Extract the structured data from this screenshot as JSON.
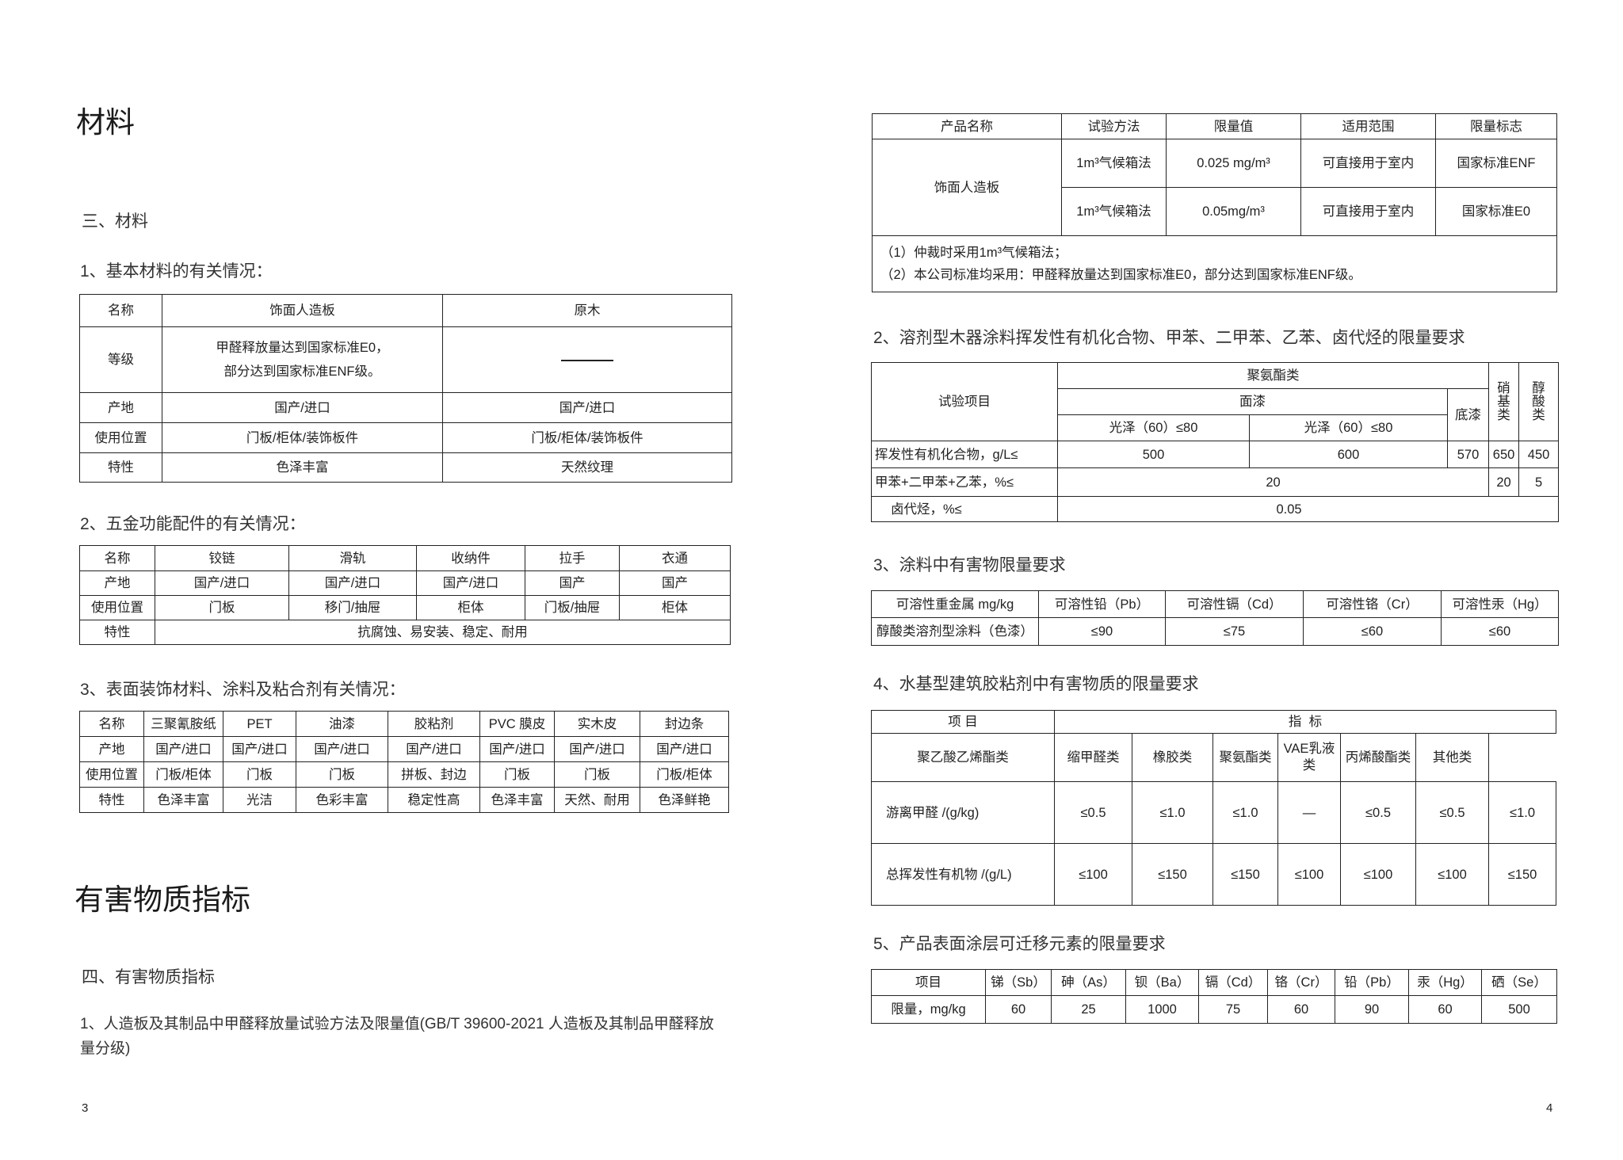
{
  "left": {
    "title": "材料",
    "section": "三、材料",
    "t1": {
      "caption": "1、基本材料的有关情况：",
      "header": [
        "名称",
        "饰面人造板",
        "原木"
      ],
      "grade": {
        "label": "等级",
        "line1": "甲醛释放量达到国家标准E0，",
        "line2": "部分达到国家标准ENF级。",
        "solid_wood": "—"
      },
      "rows": [
        [
          "产地",
          "国产/进口",
          "国产/进口"
        ],
        [
          "使用位置",
          "门板/柜体/装饰板件",
          "门板/柜体/装饰板件"
        ],
        [
          "特性",
          "色泽丰富",
          "天然纹理"
        ]
      ]
    },
    "t2": {
      "caption": "2、五金功能配件的有关情况：",
      "header": [
        "名称",
        "铰链",
        "滑轨",
        "收纳件",
        "拉手",
        "衣通"
      ],
      "rows": [
        [
          "产地",
          "国产/进口",
          "国产/进口",
          "国产/进口",
          "国产",
          "国产"
        ],
        [
          "使用位置",
          "门板",
          "移门/抽屉",
          "柜体",
          "门板/抽屉",
          "柜体"
        ]
      ],
      "feature": [
        "特性",
        "抗腐蚀、易安装、稳定、耐用"
      ]
    },
    "t3": {
      "caption": "3、表面装饰材料、涂料及粘合剂有关情况：",
      "rows": [
        [
          "名称",
          "三聚氰胺纸",
          "PET",
          "油漆",
          "胶粘剂",
          "PVC 膜皮",
          "实木皮",
          "封边条"
        ],
        [
          "产地",
          "国产/进口",
          "国产/进口",
          "国产/进口",
          "国产/进口",
          "国产/进口",
          "国产/进口",
          "国产/进口"
        ],
        [
          "使用位置",
          "门板/柜体",
          "门板",
          "门板",
          "拼板、封边",
          "门板",
          "门板",
          "门板/柜体"
        ],
        [
          "特性",
          "色泽丰富",
          "光洁",
          "色彩丰富",
          "稳定性高",
          "色泽丰富",
          "天然、耐用",
          "色泽鲜艳"
        ]
      ]
    },
    "title2": "有害物质指标",
    "section2": "四、有害物质指标",
    "para1": "1、人造板及其制品中甲醛释放量试验方法及限量值(GB/T 39600-2021  人造板及其制品甲醛释放",
    "para2": "量分级)",
    "page_number": "3"
  },
  "right": {
    "tA": {
      "header": [
        "产品名称",
        "试验方法",
        "限量值",
        "适用范围",
        "限量标志"
      ],
      "product": "饰面人造板",
      "rows": [
        [
          "1m³气候箱法",
          "0.025 mg/m³",
          "可直接用于室内",
          "国家标准ENF"
        ],
        [
          "1m³气候箱法",
          "0.05mg/m³",
          "可直接用于室内",
          "国家标准E0"
        ]
      ],
      "note1": "（1）仲裁时采用1m³气候箱法；",
      "note2": "（2）本公司标准均采用：甲醛释放量达到国家标准E0，部分达到国家标准ENF级。"
    },
    "tB": {
      "caption": "2、溶剂型木器涂料挥发性有机化合物、甲苯、二甲苯、乙苯、卤代烃的限量要求",
      "item": "试验项目",
      "pu": "聚氨酯类",
      "top": "面漆",
      "gloss1": "光泽（60）≤80",
      "gloss2": "光泽（60）≤80",
      "primer": "底漆",
      "nitro": "硝基类",
      "alkyd": "醇酸类",
      "voc": [
        "挥发性有机化合物，g/L≤",
        "500",
        "600",
        "570",
        "650",
        "450"
      ],
      "benzene": [
        "甲苯+二甲苯+乙苯，%≤",
        "20",
        "20",
        "5"
      ],
      "halo": [
        "卤代烃，%≤",
        "0.05"
      ]
    },
    "tC": {
      "caption": "3、涂料中有害物限量要求",
      "header": [
        "可溶性重金属 mg/kg",
        "可溶性铅（Pb）",
        "可溶性镉（Cd）",
        "可溶性铬（Cr）",
        "可溶性汞（Hg）"
      ],
      "row": [
        "醇酸类溶剂型涂料（色漆）",
        "≤90",
        "≤75",
        "≤60",
        "≤60"
      ]
    },
    "tD": {
      "caption": "4、水基型建筑胶粘剂中有害物质的限量要求",
      "item": "项 目",
      "index": "指  标",
      "header": [
        "聚乙酸乙烯酯类",
        "缩甲醛类",
        "橡胶类",
        "聚氨酯类",
        "VAE乳液类",
        "丙烯酸酯类",
        "其他类"
      ],
      "rows": [
        [
          "游离甲醛 /(g/kg)",
          "≤0.5",
          "≤1.0",
          "≤1.0",
          "—",
          "≤0.5",
          "≤0.5",
          "≤1.0"
        ],
        [
          "总挥发性有机物 /(g/L)",
          "≤100",
          "≤150",
          "≤150",
          "≤100",
          "≤100",
          "≤100",
          "≤150"
        ]
      ]
    },
    "tE": {
      "caption": "5、产品表面涂层可迁移元素的限量要求",
      "header": [
        "项目",
        "锑（Sb）",
        "砷（As）",
        "钡（Ba）",
        "镉（Cd）",
        "铬（Cr）",
        "铅（Pb）",
        "汞（Hg）",
        "硒（Se）"
      ],
      "row": [
        "限量，mg/kg",
        "60",
        "25",
        "1000",
        "75",
        "60",
        "90",
        "60",
        "500"
      ]
    },
    "page_number": "4"
  }
}
